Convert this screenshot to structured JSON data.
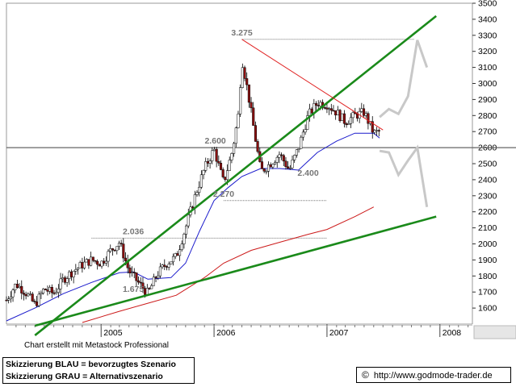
{
  "chart_data": {
    "type": "candlestick",
    "ylim": [
      1500,
      3500
    ],
    "y_ticks": [
      "1600",
      "1700",
      "1800",
      "1900",
      "2000",
      "2100",
      "2200",
      "2300",
      "2400",
      "2500",
      "2600",
      "2700",
      "2800",
      "2900",
      "3000",
      "3100",
      "3200",
      "3300",
      "3400",
      "3500"
    ],
    "x_ticks": [
      "2005",
      "2006",
      "2007",
      "2008"
    ],
    "x_tick_dates": [
      "2005-01-01",
      "2006-01-01",
      "2007-01-01",
      "2008-01-01"
    ],
    "x_start": "2004-03-01",
    "x_end": "2008-04-15",
    "price_labels": [
      {
        "text": "3.275",
        "date": "2006-04-01",
        "value": 3275
      },
      {
        "text": "2.600",
        "date": "2006-01-05",
        "value": 2600
      },
      {
        "text": "2.400",
        "date": "2006-11-01",
        "value": 2400
      },
      {
        "text": "2.270",
        "date": "2006-02-01",
        "value": 2270
      },
      {
        "text": "2.036",
        "date": "2005-04-15",
        "value": 2036
      },
      {
        "text": "1.675",
        "date": "2005-04-15",
        "value": 1675
      }
    ],
    "horizontal_levels": [
      {
        "value": 3275,
        "from": "2006-04-01",
        "to": "2007-10-10"
      },
      {
        "value": 2270,
        "from": "2006-02-01",
        "to": "2007-01-01"
      },
      {
        "value": 2036,
        "from": "2004-12-01",
        "to": "2007-01-01"
      }
    ],
    "support_line": {
      "value": 2600
    },
    "trendlines": [
      {
        "color": "#1a8a1a",
        "p1": {
          "date": "2004-06-01",
          "value": 1430
        },
        "p2": {
          "date": "2007-12-20",
          "value": 3420
        }
      },
      {
        "color": "#1a8a1a",
        "p1": {
          "date": "2004-06-01",
          "value": 1490
        },
        "p2": {
          "date": "2007-12-20",
          "value": 2170
        }
      },
      {
        "color": "#e02020",
        "p1": {
          "date": "2006-04-01",
          "value": 3275
        },
        "p2": {
          "date": "2007-07-01",
          "value": 2710
        }
      }
    ],
    "price_path": [
      [
        "2004-03-01",
        1650
      ],
      [
        "2004-04-01",
        1750
      ],
      [
        "2004-05-01",
        1700
      ],
      [
        "2004-06-01",
        1620
      ],
      [
        "2004-07-01",
        1720
      ],
      [
        "2004-08-01",
        1690
      ],
      [
        "2004-09-01",
        1780
      ],
      [
        "2004-10-01",
        1830
      ],
      [
        "2004-11-01",
        1870
      ],
      [
        "2004-12-01",
        1900
      ],
      [
        "2005-01-01",
        1880
      ],
      [
        "2005-02-01",
        1960
      ],
      [
        "2005-03-01",
        2010
      ],
      [
        "2005-04-01",
        1830
      ],
      [
        "2005-05-01",
        1760
      ],
      [
        "2005-06-01",
        1690
      ],
      [
        "2005-07-01",
        1810
      ],
      [
        "2005-08-01",
        1880
      ],
      [
        "2005-09-01",
        1920
      ],
      [
        "2005-10-01",
        2100
      ],
      [
        "2005-11-01",
        2300
      ],
      [
        "2005-12-01",
        2470
      ],
      [
        "2006-01-01",
        2590
      ],
      [
        "2006-02-01",
        2380
      ],
      [
        "2006-03-01",
        2580
      ],
      [
        "2006-03-20",
        2800
      ],
      [
        "2006-04-01",
        3150
      ],
      [
        "2006-04-20",
        2950
      ],
      [
        "2006-05-15",
        2650
      ],
      [
        "2006-06-01",
        2450
      ],
      [
        "2006-07-01",
        2500
      ],
      [
        "2006-08-01",
        2560
      ],
      [
        "2006-09-01",
        2460
      ],
      [
        "2006-10-01",
        2600
      ],
      [
        "2006-11-01",
        2800
      ],
      [
        "2006-12-01",
        2880
      ],
      [
        "2007-01-01",
        2870
      ],
      [
        "2007-02-01",
        2820
      ],
      [
        "2007-03-01",
        2760
      ],
      [
        "2007-04-01",
        2800
      ],
      [
        "2007-05-01",
        2820
      ],
      [
        "2007-06-01",
        2690
      ],
      [
        "2007-06-20",
        2700
      ]
    ],
    "series": [
      {
        "color": "#1a1acc",
        "points": [
          [
            "2004-03-01",
            1520
          ],
          [
            "2004-06-01",
            1600
          ],
          [
            "2004-09-01",
            1690
          ],
          [
            "2004-12-01",
            1760
          ],
          [
            "2005-03-01",
            1820
          ],
          [
            "2005-04-15",
            1825
          ],
          [
            "2005-06-01",
            1780
          ],
          [
            "2005-08-15",
            1790
          ],
          [
            "2005-10-01",
            1880
          ],
          [
            "2005-11-15",
            2080
          ],
          [
            "2006-01-01",
            2270
          ],
          [
            "2006-02-15",
            2350
          ],
          [
            "2006-04-01",
            2420
          ],
          [
            "2006-06-01",
            2470
          ],
          [
            "2006-08-01",
            2470
          ],
          [
            "2006-10-01",
            2460
          ],
          [
            "2006-12-01",
            2570
          ],
          [
            "2007-02-01",
            2640
          ],
          [
            "2007-04-01",
            2690
          ],
          [
            "2007-06-01",
            2690
          ],
          [
            "2007-06-20",
            2660
          ]
        ]
      },
      {
        "color": "#cc1a1a",
        "points": [
          [
            "2004-11-01",
            1510
          ],
          [
            "2005-03-01",
            1580
          ],
          [
            "2005-06-01",
            1630
          ],
          [
            "2005-09-01",
            1680
          ],
          [
            "2005-12-01",
            1790
          ],
          [
            "2006-02-01",
            1880
          ],
          [
            "2006-05-01",
            1960
          ],
          [
            "2006-08-01",
            2010
          ],
          [
            "2006-11-01",
            2060
          ],
          [
            "2007-01-01",
            2090
          ],
          [
            "2007-04-01",
            2170
          ],
          [
            "2007-06-01",
            2230
          ]
        ]
      }
    ],
    "scenario_blue": [
      [
        "2007-06-20",
        2790
      ],
      [
        "2007-07-20",
        2840
      ],
      [
        "2007-08-20",
        2810
      ],
      [
        "2007-09-20",
        2920
      ],
      [
        "2007-10-20",
        3270
      ],
      [
        "2007-11-20",
        3100
      ]
    ],
    "scenario_grey": [
      [
        "2007-06-20",
        2580
      ],
      [
        "2007-07-20",
        2570
      ],
      [
        "2007-08-20",
        2430
      ],
      [
        "2007-09-20",
        2520
      ],
      [
        "2007-10-20",
        2600
      ],
      [
        "2007-11-20",
        2230
      ]
    ]
  },
  "credit_text": "Chart erstellt mit Metastock Professional",
  "legend": {
    "line1": "Skizzierung BLAU = bevorzugtes Szenario",
    "line2": "Skizzierung GRAU = Alternativszenario"
  },
  "url": {
    "icon": "copyright-icon",
    "symbol": "©",
    "text": "http://www.godmode-trader.de"
  }
}
